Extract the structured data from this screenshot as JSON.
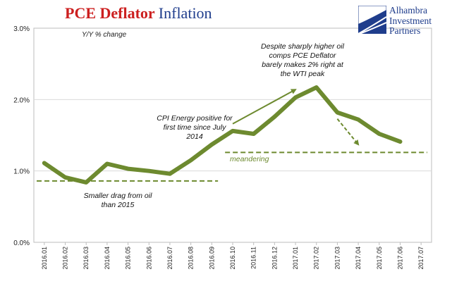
{
  "header": {
    "title_part1": "PCE Deflator",
    "title_part2": "Inflation",
    "subtitle": "Y/Y % change"
  },
  "logo": {
    "line1": "Alhambra",
    "line2": "Investment",
    "line3": "Partners",
    "color": "#1f3d8c"
  },
  "annotations": {
    "oil_peak": "Despite sharply higher oil comps PCE Deflator barely makes 2% right at the WTI peak",
    "cpi_energy": "CPI Energy positive for first time since July 2014",
    "meandering": "meandering",
    "smaller_drag": "Smaller drag from oil than 2015"
  },
  "colors": {
    "series": "#6d8a2f",
    "title_red": "#cc1f1f",
    "title_blue": "#1f3d8c"
  },
  "chart_data": {
    "type": "line",
    "title": "PCE Deflator Inflation",
    "subtitle": "Y/Y % change",
    "categories": [
      "2016.01",
      "2016.02",
      "2016.03",
      "2016.04",
      "2016.05",
      "2016.06",
      "2016.07",
      "2016.08",
      "2016.09",
      "2016.10",
      "2016.11",
      "2016.12",
      "2017.01",
      "2017.02",
      "2017.03",
      "2017.04",
      "2017.05",
      "2017.06",
      "2017.07"
    ],
    "series": [
      {
        "name": "",
        "values": [
          1.11,
          0.91,
          0.84,
          1.1,
          1.03,
          1.0,
          0.96,
          1.15,
          1.37,
          1.56,
          1.52,
          1.76,
          2.03,
          2.17,
          1.82,
          1.72,
          1.52,
          1.41,
          null
        ]
      }
    ],
    "yticks": [
      "0.0%",
      "1.0%",
      "2.0%",
      "3.0%"
    ],
    "ylim": [
      0,
      3
    ],
    "xlabel": "",
    "ylabel": "",
    "grid": true,
    "reference_lines": [
      {
        "from": "2016.01",
        "to": "2016.09",
        "value": 0.86
      },
      {
        "from": "2016.10",
        "to": "2017.07",
        "value": 1.26
      }
    ],
    "arrows": [
      {
        "from_x": "2016.10",
        "from_y": 1.66,
        "to_x": "2017.01",
        "to_y": 2.14
      },
      {
        "from_x": "2017.03",
        "from_y": 1.73,
        "to_x": "2017.04",
        "to_y": 1.37
      }
    ]
  }
}
